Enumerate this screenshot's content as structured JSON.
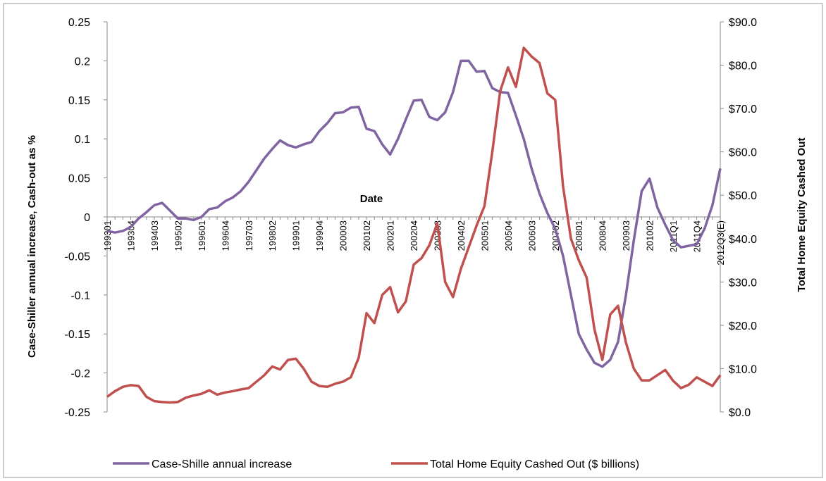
{
  "chart_data": {
    "type": "line",
    "x_label": "Date",
    "y_label": "Case-Shiller annual increase, Cash-out as %",
    "y2_label": "Total Home Equity Cashed Out",
    "categories": [
      "199301",
      null,
      null,
      "199304",
      null,
      null,
      "199403",
      null,
      null,
      "199502",
      null,
      null,
      "199601",
      null,
      null,
      "199604",
      null,
      null,
      "199703",
      null,
      null,
      "199802",
      null,
      null,
      "199901",
      null,
      null,
      "199904",
      null,
      null,
      "200003",
      null,
      null,
      "200102",
      null,
      null,
      "200201",
      null,
      null,
      "200204",
      null,
      null,
      "200303",
      null,
      null,
      "200402",
      null,
      null,
      "200501",
      null,
      null,
      "200504",
      null,
      null,
      "200603",
      null,
      null,
      "200702",
      null,
      null,
      "200801",
      null,
      null,
      "200804",
      null,
      null,
      "200903",
      null,
      null,
      "201002",
      null,
      null,
      "2011Q1",
      null,
      null,
      "2011Q4",
      null,
      null,
      "2012Q3(E)"
    ],
    "series": [
      {
        "name": "Case-Shille annual increase",
        "color": "#8064a2",
        "values": [
          -0.018,
          -0.02,
          -0.018,
          -0.013,
          -0.002,
          0.006,
          0.015,
          0.018,
          0.008,
          -0.002,
          -0.002,
          -0.004,
          0.0,
          0.01,
          0.012,
          0.02,
          0.025,
          0.033,
          0.045,
          0.06,
          0.075,
          0.087,
          0.098,
          0.092,
          0.089,
          0.093,
          0.096,
          0.11,
          0.12,
          0.133,
          0.134,
          0.14,
          0.141,
          0.113,
          0.11,
          0.093,
          0.08,
          0.1,
          0.125,
          0.149,
          0.15,
          0.128,
          0.124,
          0.134,
          0.16,
          0.2,
          0.2,
          0.186,
          0.187,
          0.165,
          0.16,
          0.159,
          0.13,
          0.1,
          0.062,
          0.03,
          0.005,
          -0.015,
          -0.05,
          -0.1,
          -0.15,
          -0.17,
          -0.187,
          -0.192,
          -0.183,
          -0.16,
          -0.1,
          -0.03,
          0.033,
          0.049,
          0.012,
          -0.01,
          -0.03,
          -0.039,
          -0.037,
          -0.035,
          -0.015,
          0.015,
          0.062
        ]
      },
      {
        "name": "Total Home Equity Cashed Out ($ billions)",
        "color": "#c0504d",
        "axis": "y2",
        "values": [
          3.5,
          4.8,
          5.8,
          6.2,
          6.0,
          3.5,
          2.5,
          2.3,
          2.2,
          2.3,
          3.3,
          3.8,
          4.2,
          5.0,
          4.0,
          4.5,
          4.8,
          5.2,
          5.5,
          7.0,
          8.5,
          10.5,
          9.8,
          12.0,
          12.3,
          10.0,
          7.0,
          6.0,
          5.8,
          6.5,
          7.0,
          8.0,
          12.5,
          22.8,
          20.5,
          27.0,
          28.8,
          23.0,
          25.5,
          34.0,
          35.5,
          38.5,
          43.5,
          30.0,
          26.5,
          33.0,
          38.0,
          43.0,
          47.5,
          60.0,
          74.0,
          79.5,
          75.0,
          84.0,
          82.0,
          80.5,
          73.5,
          72.0,
          52.0,
          40.0,
          35.0,
          31.0,
          19.0,
          12.0,
          22.5,
          24.5,
          16.0,
          10.0,
          7.3,
          7.3,
          8.5,
          9.7,
          7.2,
          5.5,
          6.3,
          8.0,
          7.0,
          6.0,
          8.5
        ]
      }
    ],
    "ylim": [
      -0.25,
      0.25
    ],
    "yticks": [
      -0.25,
      -0.2,
      -0.15,
      -0.1,
      -0.05,
      0,
      0.05,
      0.1,
      0.15,
      0.2,
      0.25
    ],
    "y2lim": [
      0,
      90
    ],
    "y2ticks": [
      {
        "value": 0,
        "label": "$0.0"
      },
      {
        "value": 10,
        "label": "$10.0"
      },
      {
        "value": 20,
        "label": "$20.0"
      },
      {
        "value": 30,
        "label": "$30.0"
      },
      {
        "value": 40,
        "label": "$40.0"
      },
      {
        "value": 50,
        "label": "$50.0"
      },
      {
        "value": 60,
        "label": "$60.0"
      },
      {
        "value": 70,
        "label": "$70.0"
      },
      {
        "value": 80,
        "label": "$80.0"
      },
      {
        "value": 90,
        "label": "$90.0"
      }
    ],
    "legend": "bottom"
  }
}
